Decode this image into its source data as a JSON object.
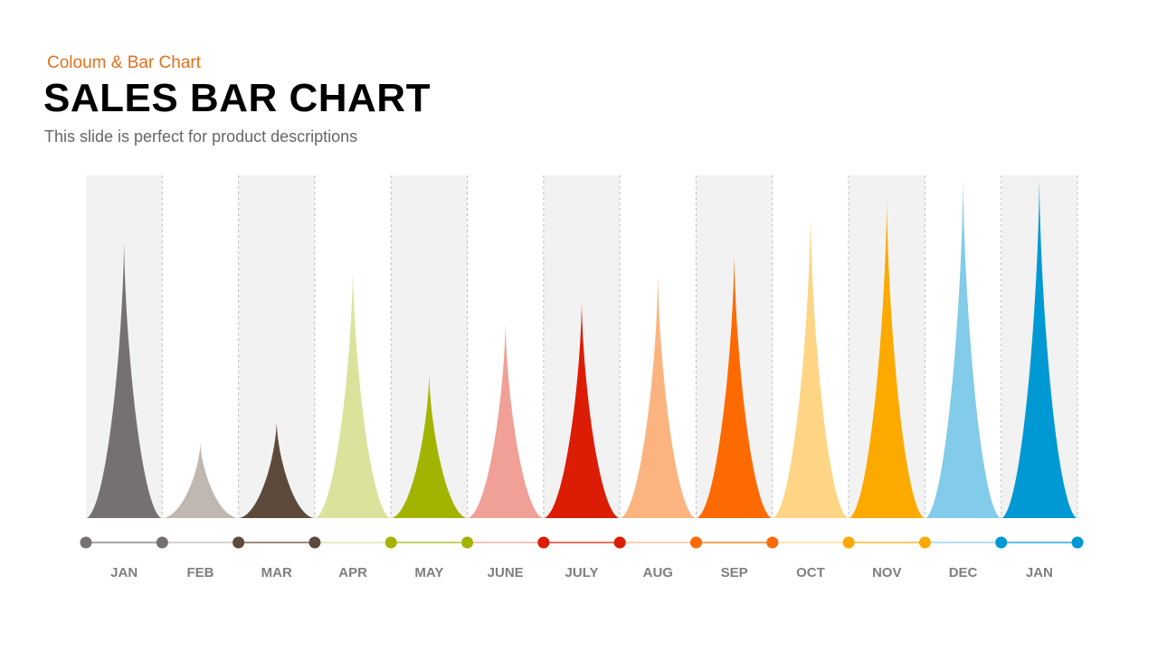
{
  "slide": {
    "kicker": "Coloum & Bar Chart",
    "title": "SALES BAR CHART",
    "subtitle": "This slide is perfect for product descriptions"
  },
  "colors": {
    "background": "#ffffff",
    "band": "#f2f2f2",
    "kicker": "#e3701c",
    "label": "#7f7f7f",
    "divider": "#bfbfbf",
    "timeline": "#404040"
  },
  "chart_data": {
    "type": "bar",
    "title": "SALES BAR CHART",
    "categories": [
      "JAN",
      "FEB",
      "MAR",
      "APR",
      "MAY",
      "JUNE",
      "JULY",
      "AUG",
      "SEP",
      "OCT",
      "NOV",
      "DEC",
      "JAN"
    ],
    "values": [
      81,
      22,
      28,
      73,
      42,
      57,
      63,
      71,
      77,
      89,
      93,
      99,
      99
    ],
    "bar_colors": [
      "#767171",
      "#bfb8b1",
      "#5d4a3a",
      "#dbe29b",
      "#a2b400",
      "#f0a096",
      "#dd1c05",
      "#fbb47f",
      "#fd6a02",
      "#fdd585",
      "#fca900",
      "#82cbe9",
      "#0199d4"
    ],
    "ylim": [
      0,
      100
    ],
    "marker_shape": "spike",
    "alternating_bands": true,
    "timeline_markers": true,
    "xlabel": "",
    "ylabel": ""
  }
}
